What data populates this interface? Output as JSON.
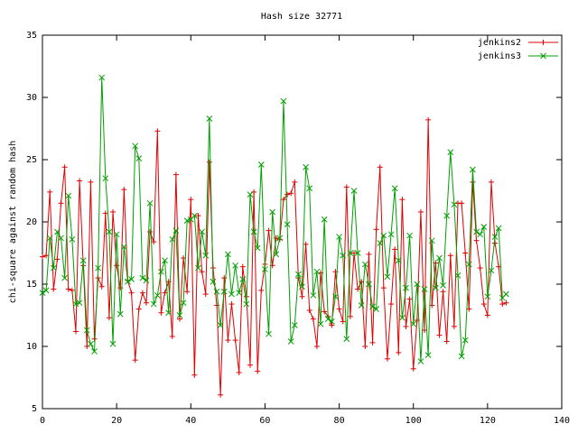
{
  "chart_data": {
    "type": "line",
    "title": "Hash size 32771",
    "ylabel": "chi-square against random hash",
    "x": [
      0,
      1,
      2,
      3,
      4,
      5,
      6,
      7,
      8,
      9,
      10,
      11,
      12,
      13,
      14,
      15,
      16,
      17,
      18,
      19,
      20,
      21,
      22,
      23,
      24,
      25,
      26,
      27,
      28,
      29,
      30,
      31,
      32,
      33,
      34,
      35,
      36,
      37,
      38,
      39,
      40,
      41,
      42,
      43,
      44,
      45,
      46,
      47,
      48,
      49,
      50,
      51,
      52,
      53,
      54,
      55,
      56,
      57,
      58,
      59,
      60,
      61,
      62,
      63,
      64,
      65,
      66,
      67,
      68,
      69,
      70,
      71,
      72,
      73,
      74,
      75,
      76,
      77,
      78,
      79,
      80,
      81,
      82,
      83,
      84,
      85,
      86,
      87,
      88,
      89,
      90,
      91,
      92,
      93,
      94,
      95,
      96,
      97,
      98,
      99,
      100,
      101,
      102,
      103,
      104,
      105,
      106,
      107,
      108,
      109,
      110,
      111,
      112,
      113,
      114,
      115,
      116,
      117,
      118,
      119,
      120,
      121,
      122,
      123,
      124,
      125
    ],
    "series": [
      {
        "name": "jenkins2",
        "color": "#e00000",
        "marker": "plus",
        "values": [
          17.2,
          17.3,
          22.4,
          14.6,
          17,
          21.5,
          24.4,
          14.6,
          14.5,
          11.2,
          23.3,
          16.5,
          10,
          23.2,
          10.6,
          15.5,
          14.8,
          20.7,
          12.3,
          20.8,
          16.5,
          14.7,
          22.6,
          15.3,
          14.3,
          8.9,
          13,
          14.3,
          13.5,
          19.2,
          18.4,
          27.3,
          12.7,
          14.3,
          15.2,
          10.8,
          23.8,
          12.2,
          17.1,
          14.4,
          21.8,
          7.7,
          20.5,
          16,
          14.2,
          24.8,
          16.3,
          13.3,
          6.1,
          15.5,
          10.5,
          13.4,
          10.5,
          7.9,
          16.4,
          14,
          8.5,
          22.4,
          8,
          14.5,
          16.6,
          19.3,
          16.5,
          18.7,
          18.6,
          21.8,
          22.2,
          22.3,
          23.2,
          15.5,
          14,
          18.2,
          12.9,
          12.2,
          10,
          15.9,
          12.8,
          12.4,
          11.7,
          16,
          13,
          12,
          22.8,
          12.4,
          17.5,
          14.6,
          15.2,
          10,
          17.4,
          10.3,
          19.4,
          24.4,
          14.7,
          9,
          13.4,
          17.8,
          9.5,
          21.8,
          11.6,
          13.8,
          8.2,
          12.1,
          20.8,
          11.3,
          28.2,
          13.3,
          16.7,
          10.9,
          14.4,
          10.4,
          17.3,
          11.6,
          21.5,
          21.5,
          17.5,
          13,
          23.2,
          18.5,
          16.3,
          13.4,
          12.5,
          23.2,
          18.3,
          16.4,
          13.4,
          13.5
        ]
      },
      {
        "name": "jenkins3",
        "color": "#00a000",
        "marker": "cross",
        "values": [
          14.3,
          14.5,
          18.7,
          16.3,
          19.2,
          18.7,
          15.5,
          22.1,
          18.6,
          13.4,
          13.5,
          16.9,
          11.3,
          10.2,
          9.6,
          16.3,
          31.6,
          23.5,
          19.2,
          10.2,
          19,
          12.6,
          18,
          15.2,
          15.4,
          26.1,
          25.1,
          15.5,
          15.3,
          21.5,
          13.4,
          14.1,
          16,
          16.9,
          12.7,
          18.6,
          19.3,
          12.5,
          13.5,
          20.1,
          20.2,
          20.5,
          16.3,
          19.2,
          17.3,
          28.3,
          15.2,
          14.4,
          11.7,
          14.4,
          17.4,
          14.2,
          16.5,
          14.3,
          15.4,
          13.4,
          22.2,
          19.2,
          17.9,
          24.6,
          16.2,
          11,
          20.8,
          17.4,
          18.7,
          29.7,
          19.8,
          10.4,
          11.7,
          15.8,
          14.8,
          24.4,
          22.7,
          14.1,
          16,
          11.8,
          20.2,
          12.2,
          12,
          14,
          18.8,
          17.3,
          10.6,
          17.5,
          22.5,
          17.5,
          13.3,
          16.6,
          15,
          13.2,
          13,
          18.3,
          18.9,
          15.6,
          19,
          22.7,
          16.9,
          12.3,
          14.7,
          18.9,
          11.8,
          15,
          8.8,
          14.6,
          9.3,
          18.5,
          14.7,
          17.1,
          14.9,
          20.5,
          25.6,
          21.4,
          15.7,
          9.2,
          10.5,
          16.6,
          24.2,
          19.2,
          19,
          19.6,
          14,
          16.1,
          18.8,
          19.5,
          13.9,
          14.2
        ]
      }
    ],
    "xlim": [
      0,
      140
    ],
    "xticks": [
      0,
      20,
      40,
      60,
      80,
      100,
      120,
      140
    ],
    "ylim": [
      5,
      35
    ],
    "yticks": [
      5,
      10,
      15,
      20,
      25,
      30,
      35
    ],
    "grid": false,
    "legend": "top right"
  }
}
